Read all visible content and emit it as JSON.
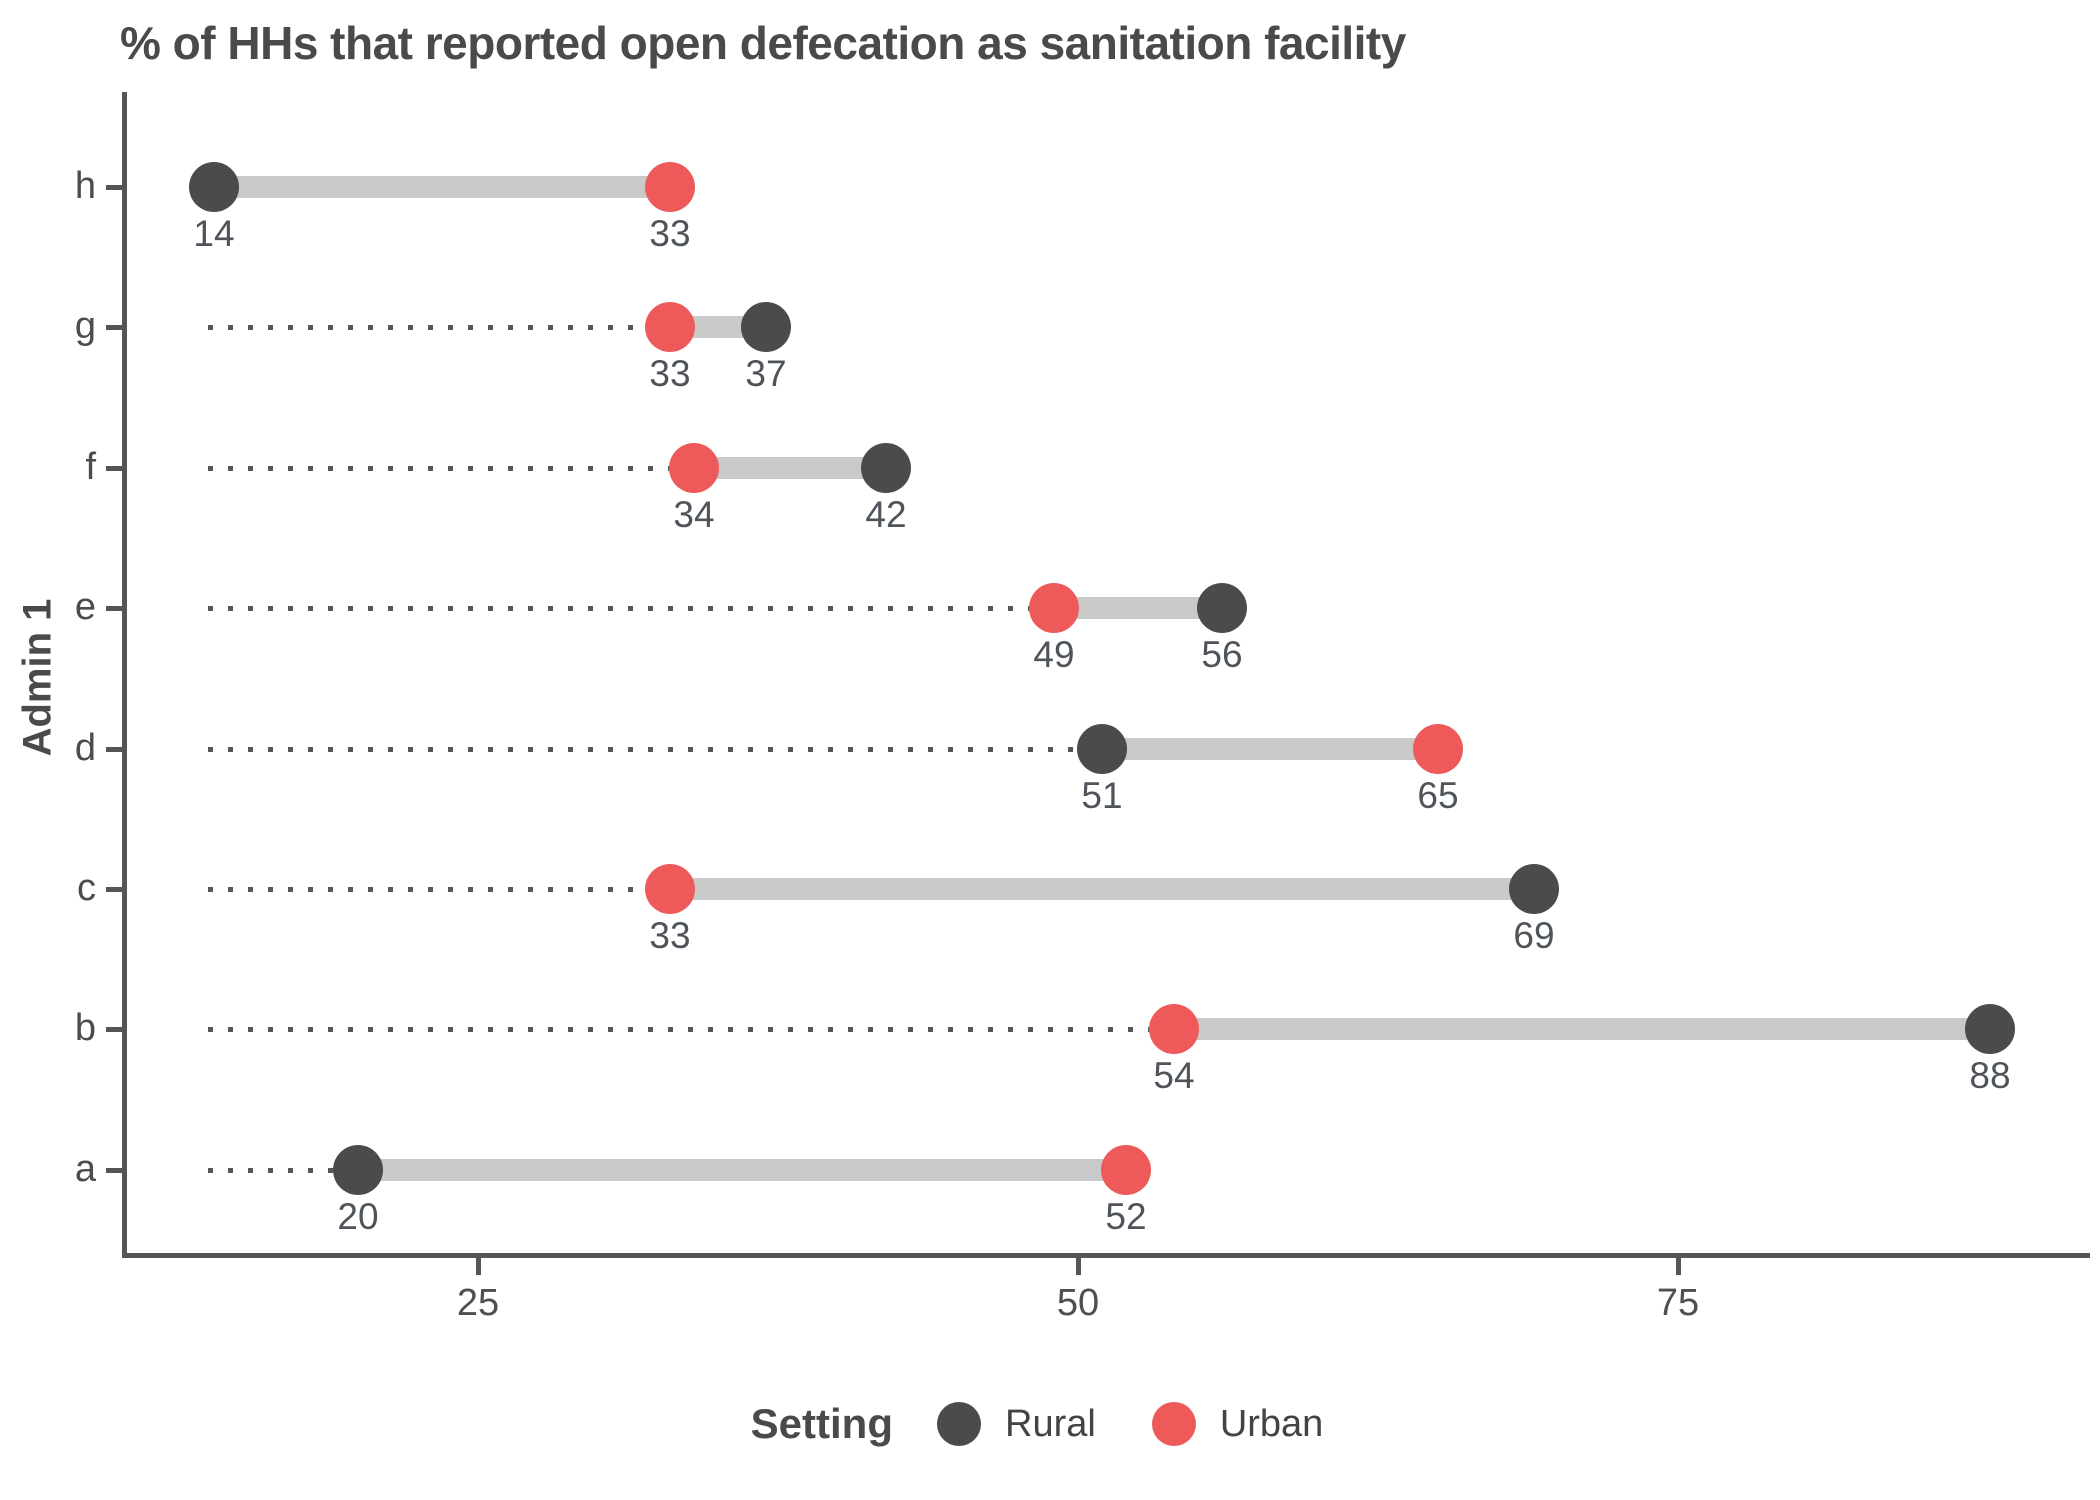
{
  "title": "% of HHs that reported open defecation as sanitation facility",
  "y_axis_label": "Admin 1",
  "x_ticks": [
    "25",
    "50",
    "75"
  ],
  "legend": {
    "title": "Setting",
    "items": [
      {
        "label": "Rural",
        "color": "#4d4a4a"
      },
      {
        "label": "Urban",
        "color": "#ee5a5a"
      }
    ]
  },
  "colors": {
    "rural": "#4d4a4a",
    "urban": "#ee5a5a",
    "connector_bar": "#c9c9c9",
    "leader_line": "#575757",
    "axis": "#555555",
    "title_text": "#4a4a4a",
    "value_label_text": "#4f545b"
  },
  "chart_data": {
    "type": "dumbbell",
    "title": "% of HHs that reported open defecation as sanitation facility",
    "xlabel": "",
    "ylabel": "Admin 1",
    "legend_title": "Setting",
    "legend_position": "bottom",
    "grid": false,
    "x_tick_values": [
      25,
      50,
      75
    ],
    "xlim": [
      10.5,
      92.5
    ],
    "series_names": [
      "Rural",
      "Urban"
    ],
    "categories_top_to_bottom": [
      "h",
      "g",
      "f",
      "e",
      "d",
      "c",
      "b",
      "a"
    ],
    "rows": [
      {
        "category": "h",
        "rural": 14,
        "urban": 33
      },
      {
        "category": "g",
        "rural": 37,
        "urban": 33
      },
      {
        "category": "f",
        "rural": 42,
        "urban": 34
      },
      {
        "category": "e",
        "rural": 56,
        "urban": 49
      },
      {
        "category": "d",
        "rural": 51,
        "urban": 65
      },
      {
        "category": "c",
        "rural": 69,
        "urban": 33
      },
      {
        "category": "b",
        "rural": 88,
        "urban": 54
      },
      {
        "category": "a",
        "rural": 20,
        "urban": 52
      }
    ]
  }
}
